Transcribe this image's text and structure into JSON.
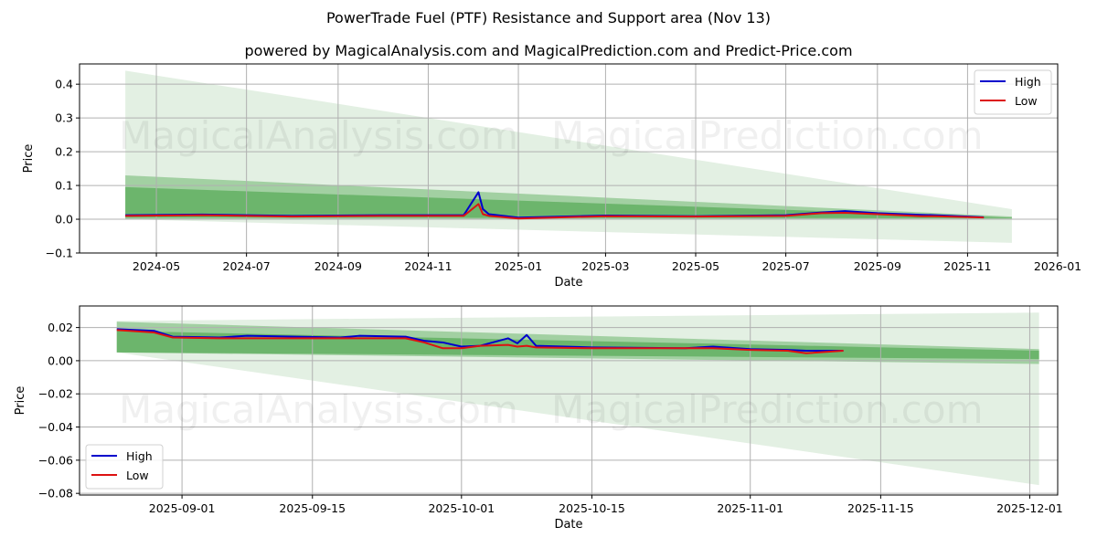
{
  "header": {
    "title": "PowerTrade Fuel (PTF) Resistance and Support area (Nov 13)",
    "subtitle": "powered by MagicalAnalysis.com and MagicalPrediction.com and Predict-Price.com"
  },
  "watermarks": [
    "MagicalAnalysis.com",
    "MagicalPrediction.com"
  ],
  "colors": {
    "high": "#0000cc",
    "low": "#dd1111",
    "band_light": "#e3f0e3",
    "band_mid": "#8cc68c",
    "band_dark": "#55aa55",
    "grid": "#b0b0b0"
  },
  "chart_data": [
    {
      "type": "line",
      "title": "PowerTrade Fuel (PTF) Resistance and Support area (Nov 13)",
      "xlabel": "Date",
      "ylabel": "Price",
      "ylim": [
        -0.1,
        0.46
      ],
      "xlim": [
        "2024-03-10",
        "2026-01-01"
      ],
      "x_ticks": [
        "2024-05",
        "2024-07",
        "2024-09",
        "2024-11",
        "2025-01",
        "2025-03",
        "2025-05",
        "2025-07",
        "2025-09",
        "2025-11",
        "2026-01"
      ],
      "y_ticks": [
        "-0.1",
        "0.0",
        "0.1",
        "0.2",
        "0.3",
        "0.4"
      ],
      "legend": {
        "position": "upper right",
        "entries": [
          "High",
          "Low"
        ]
      },
      "grid": true,
      "series": [
        {
          "name": "High",
          "x": [
            "2024-04-10",
            "2024-06-01",
            "2024-08-01",
            "2024-10-01",
            "2024-11-25",
            "2024-12-05",
            "2024-12-08",
            "2024-12-12",
            "2025-01-01",
            "2025-03-01",
            "2025-05-01",
            "2025-07-01",
            "2025-07-25",
            "2025-08-10",
            "2025-09-01",
            "2025-10-01",
            "2025-10-10",
            "2025-11-12"
          ],
          "values": [
            0.012,
            0.014,
            0.01,
            0.012,
            0.012,
            0.08,
            0.03,
            0.015,
            0.005,
            0.011,
            0.009,
            0.012,
            0.02,
            0.024,
            0.018,
            0.013,
            0.012,
            0.006
          ]
        },
        {
          "name": "Low",
          "x": [
            "2024-04-10",
            "2024-06-01",
            "2024-08-01",
            "2024-10-01",
            "2024-11-25",
            "2024-12-05",
            "2024-12-08",
            "2024-12-12",
            "2025-01-01",
            "2025-03-01",
            "2025-05-01",
            "2025-07-01",
            "2025-07-25",
            "2025-08-10",
            "2025-09-01",
            "2025-10-01",
            "2025-10-10",
            "2025-11-12"
          ],
          "values": [
            0.01,
            0.012,
            0.008,
            0.01,
            0.01,
            0.045,
            0.015,
            0.01,
            0.002,
            0.009,
            0.008,
            0.01,
            0.018,
            0.019,
            0.015,
            0.009,
            0.009,
            0.005
          ]
        }
      ],
      "bands": [
        {
          "name": "outer",
          "x": [
            "2024-04-10",
            "2025-12-01"
          ],
          "upper": [
            0.44,
            0.03
          ],
          "lower": [
            0.0,
            -0.07
          ]
        },
        {
          "name": "middle",
          "x": [
            "2024-04-10",
            "2025-12-01"
          ],
          "upper": [
            0.13,
            0.008
          ],
          "lower": [
            0.0,
            0.0
          ]
        },
        {
          "name": "inner",
          "x": [
            "2024-04-10",
            "2025-12-01"
          ],
          "upper": [
            0.095,
            0.005
          ],
          "lower": [
            0.005,
            0.003
          ]
        }
      ]
    },
    {
      "type": "line",
      "xlabel": "Date",
      "ylabel": "Price",
      "ylim": [
        -0.081,
        0.033
      ],
      "xlim": [
        "2025-08-21",
        "2025-12-04"
      ],
      "x_ticks": [
        "2025-09-01",
        "2025-09-15",
        "2025-10-01",
        "2025-10-15",
        "2025-11-01",
        "2025-11-15",
        "2025-12-01"
      ],
      "y_ticks": [
        "-0.08",
        "-0.06",
        "-0.04",
        "-0.02",
        "0.00",
        "0.02"
      ],
      "legend": {
        "position": "lower left",
        "entries": [
          "High",
          "Low"
        ]
      },
      "grid": true,
      "series": [
        {
          "name": "High",
          "x": [
            "2025-08-25",
            "2025-08-29",
            "2025-08-31",
            "2025-09-05",
            "2025-09-08",
            "2025-09-18",
            "2025-09-20",
            "2025-09-25",
            "2025-09-27",
            "2025-09-29",
            "2025-10-01",
            "2025-10-03",
            "2025-10-06",
            "2025-10-07",
            "2025-10-08",
            "2025-10-09",
            "2025-10-15",
            "2025-10-25",
            "2025-10-28",
            "2025-11-01",
            "2025-11-05",
            "2025-11-07",
            "2025-11-11"
          ],
          "values": [
            0.019,
            0.018,
            0.0145,
            0.014,
            0.015,
            0.014,
            0.015,
            0.0145,
            0.012,
            0.011,
            0.0085,
            0.009,
            0.0135,
            0.0105,
            0.0155,
            0.009,
            0.008,
            0.0075,
            0.0085,
            0.007,
            0.0065,
            0.006,
            0.006
          ]
        },
        {
          "name": "Low",
          "x": [
            "2025-08-25",
            "2025-08-29",
            "2025-08-31",
            "2025-09-05",
            "2025-09-08",
            "2025-09-18",
            "2025-09-20",
            "2025-09-25",
            "2025-09-27",
            "2025-09-29",
            "2025-10-01",
            "2025-10-03",
            "2025-10-06",
            "2025-10-07",
            "2025-10-08",
            "2025-10-09",
            "2025-10-15",
            "2025-10-25",
            "2025-10-28",
            "2025-11-01",
            "2025-11-05",
            "2025-11-07",
            "2025-11-11"
          ],
          "values": [
            0.0185,
            0.017,
            0.014,
            0.0135,
            0.0135,
            0.0135,
            0.0135,
            0.0135,
            0.011,
            0.0075,
            0.0075,
            0.009,
            0.0095,
            0.0085,
            0.009,
            0.008,
            0.0075,
            0.0075,
            0.0075,
            0.0065,
            0.006,
            0.0045,
            0.006
          ]
        }
      ],
      "bands": [
        {
          "name": "outer",
          "x": [
            "2025-08-25",
            "2025-12-02"
          ],
          "upper": [
            0.024,
            0.029
          ],
          "lower": [
            0.005,
            -0.075
          ]
        },
        {
          "name": "middle",
          "x": [
            "2025-08-25",
            "2025-12-02"
          ],
          "upper": [
            0.0235,
            0.007
          ],
          "lower": [
            0.005,
            -0.002
          ]
        },
        {
          "name": "inner",
          "x": [
            "2025-08-25",
            "2025-12-02"
          ],
          "upper": [
            0.018,
            0.006
          ],
          "lower": [
            0.005,
            0.001
          ]
        }
      ]
    }
  ]
}
